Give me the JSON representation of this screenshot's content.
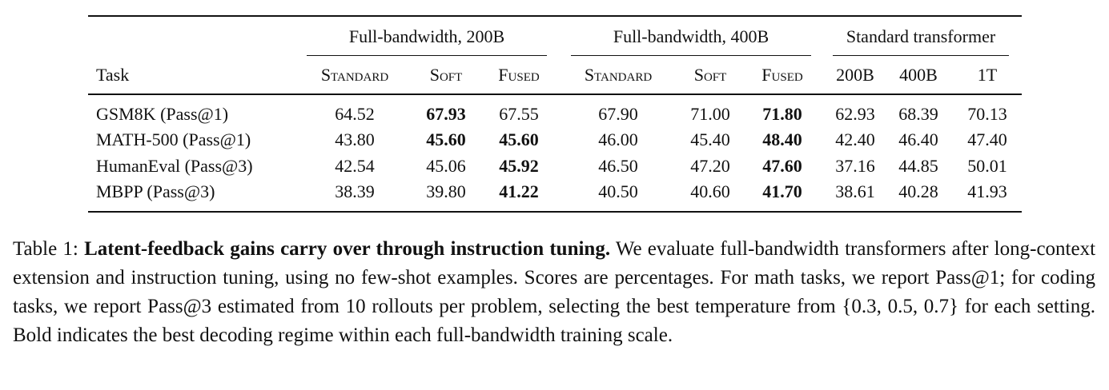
{
  "table": {
    "group_headers": [
      "Full-bandwidth, 200B",
      "Full-bandwidth, 400B",
      "Standard transformer"
    ],
    "group_spans": [
      [
        1,
        3
      ],
      [
        4,
        6
      ],
      [
        7,
        9
      ]
    ],
    "columns": [
      "Task",
      "Standard",
      "Soft",
      "Fused",
      "Standard",
      "Soft",
      "Fused",
      "200B",
      "400B",
      "1T"
    ],
    "rows": [
      [
        "GSM8K (Pass@1)",
        "64.52",
        "67.93",
        "67.55",
        "67.90",
        "71.00",
        "71.80",
        "62.93",
        "68.39",
        "70.13"
      ],
      [
        "MATH-500 (Pass@1)",
        "43.80",
        "45.60",
        "45.60",
        "46.00",
        "45.40",
        "48.40",
        "42.40",
        "46.40",
        "47.40"
      ],
      [
        "HumanEval (Pass@3)",
        "42.54",
        "45.06",
        "45.92",
        "46.50",
        "47.20",
        "47.60",
        "37.16",
        "44.85",
        "50.01"
      ],
      [
        "MBPP (Pass@3)",
        "38.39",
        "39.80",
        "41.22",
        "40.50",
        "40.60",
        "41.70",
        "38.61",
        "40.28",
        "41.93"
      ]
    ],
    "bold": [
      [
        0,
        2
      ],
      [
        0,
        6
      ],
      [
        1,
        2
      ],
      [
        1,
        3
      ],
      [
        1,
        6
      ],
      [
        2,
        3
      ],
      [
        2,
        6
      ],
      [
        3,
        3
      ],
      [
        3,
        6
      ]
    ]
  },
  "caption": {
    "label": "Table 1:",
    "title": "Latent-feedback gains carry over through instruction tuning.",
    "text": "We evaluate full-bandwidth transformers after long-context extension and instruction tuning, using no few-shot examples. Scores are percentages. For math tasks, we report Pass@1; for coding tasks, we report Pass@3 estimated from 10 rollouts per problem, selecting the best temperature from {0.3, 0.5, 0.7} for each setting. Bold indicates the best decoding regime within each full-bandwidth training scale."
  }
}
